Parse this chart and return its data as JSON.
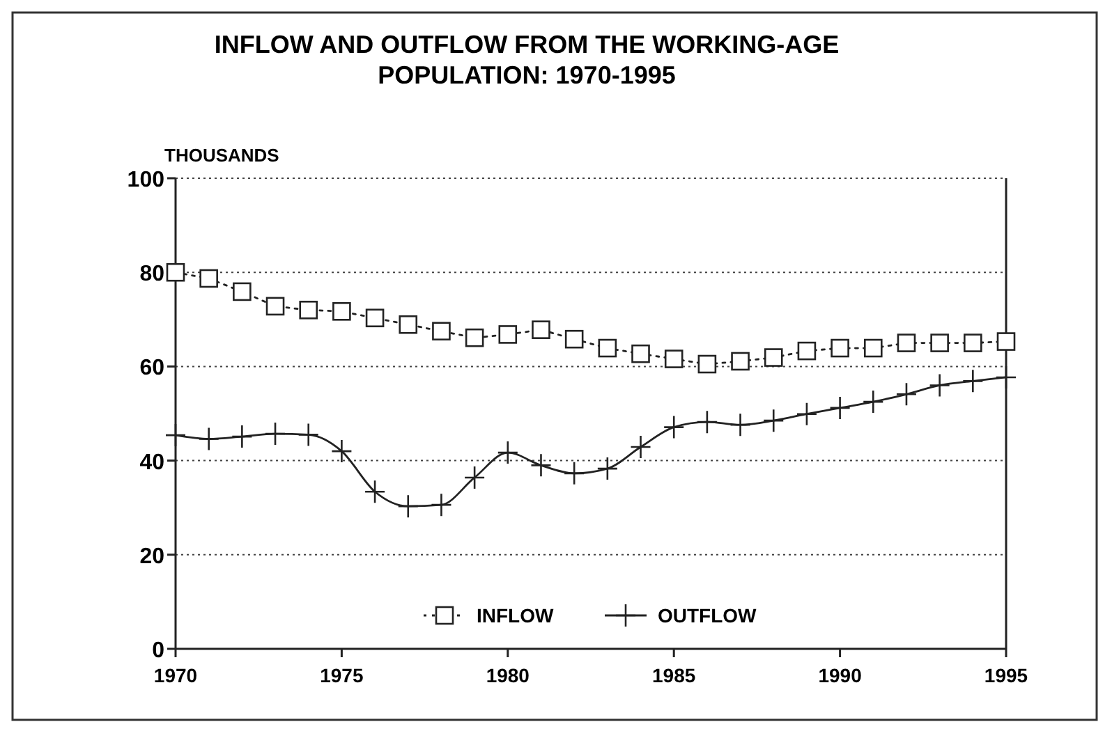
{
  "chart_data": {
    "type": "line",
    "title": "INFLOW AND OUTFLOW FROM THE WORKING-AGE\nPOPULATION: 1970-1995",
    "ylabel": "THOUSANDS",
    "x": [
      1970,
      1971,
      1972,
      1973,
      1974,
      1975,
      1976,
      1977,
      1978,
      1979,
      1980,
      1981,
      1982,
      1983,
      1984,
      1985,
      1986,
      1987,
      1988,
      1989,
      1990,
      1991,
      1992,
      1993,
      1994,
      1995
    ],
    "series": [
      {
        "name": "INFLOW",
        "color": "#222222",
        "marker": "square",
        "line_style": "dotted",
        "values": [
          80,
          78.7,
          75.9,
          72.8,
          72,
          71.7,
          70.3,
          68.9,
          67.5,
          66.1,
          66.8,
          67.8,
          65.8,
          63.9,
          62.7,
          61.6,
          60.5,
          61.1,
          61.9,
          63.3,
          63.9,
          63.9,
          65,
          65,
          65,
          65.3
        ]
      },
      {
        "name": "OUTFLOW",
        "color": "#222222",
        "marker": "cross",
        "line_style": "solid",
        "values": [
          45.4,
          44.6,
          45.1,
          45.7,
          45.5,
          42,
          33.4,
          30.3,
          30.6,
          36.4,
          41.7,
          39,
          37.3,
          38.3,
          42.9,
          47.1,
          48.2,
          47.6,
          48.5,
          49.9,
          51.2,
          52.5,
          54.1,
          56,
          56.9,
          57.7
        ]
      }
    ],
    "xlim": [
      1970,
      1995
    ],
    "xticks": [
      1970,
      1975,
      1980,
      1985,
      1990,
      1995
    ],
    "ylim": [
      0,
      100
    ],
    "yticks": [
      0,
      20,
      40,
      60,
      80,
      100
    ],
    "grid": "y",
    "legend": "bottom"
  }
}
